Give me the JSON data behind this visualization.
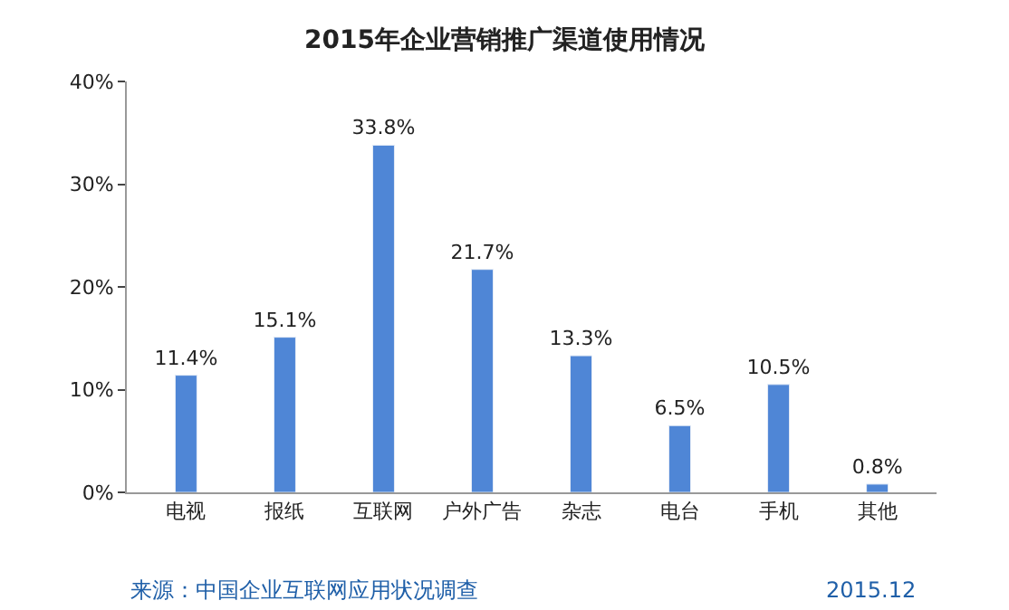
{
  "chart_data": {
    "type": "bar",
    "title": "2015年企业营销推广渠道使用情况",
    "categories": [
      "电视",
      "报纸",
      "互联网",
      "户外广告",
      "杂志",
      "电台",
      "手机",
      "其他"
    ],
    "values": [
      11.4,
      15.1,
      33.8,
      21.7,
      13.3,
      6.5,
      10.5,
      0.8
    ],
    "value_labels": [
      "11.4%",
      "15.1%",
      "33.8%",
      "21.7%",
      "13.3%",
      "6.5%",
      "10.5%",
      "0.8%"
    ],
    "color": "#4f86d6",
    "ylim": [
      0,
      40
    ],
    "yticks": [
      {
        "value": 0,
        "label": "0%"
      },
      {
        "value": 10,
        "label": "10%"
      },
      {
        "value": 20,
        "label": "20%"
      },
      {
        "value": 30,
        "label": "30%"
      },
      {
        "value": 40,
        "label": "40%"
      }
    ],
    "annotations": [
      "来源：中国企业互联网应用状况调查",
      "2015.12"
    ]
  }
}
